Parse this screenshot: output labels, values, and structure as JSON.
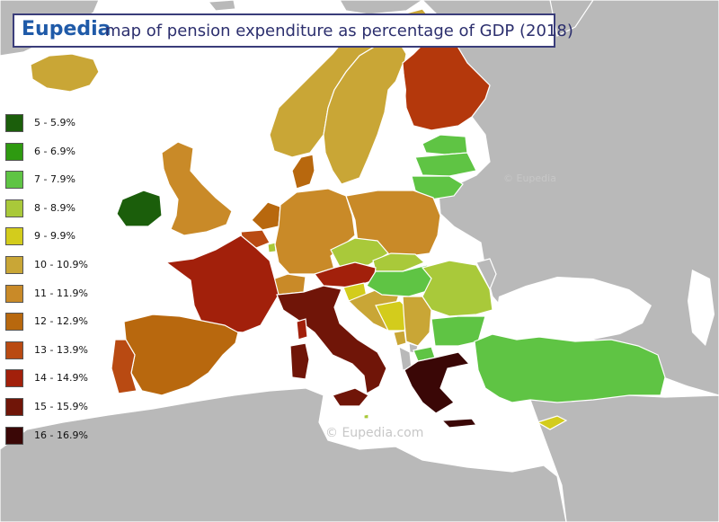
{
  "header": {
    "brand": "Eupedia",
    "title": "map of pension expenditure as percentage of GDP (2018)"
  },
  "legend": {
    "items": [
      {
        "label": "5 - 5.9%",
        "color": "#1b5e0b"
      },
      {
        "label": "6 - 6.9%",
        "color": "#2e9a10"
      },
      {
        "label": "7 - 7.9%",
        "color": "#5fc444"
      },
      {
        "label": "8 - 8.9%",
        "color": "#a9c93a"
      },
      {
        "label": "9 - 9.9%",
        "color": "#d3cc1c"
      },
      {
        "label": "10 - 10.9%",
        "color": "#c9a636"
      },
      {
        "label": "11 - 11.9%",
        "color": "#c98a28"
      },
      {
        "label": "12 - 12.9%",
        "color": "#b8680e"
      },
      {
        "label": "13 - 13.9%",
        "color": "#b94a12"
      },
      {
        "label": "14 - 14.9%",
        "color": "#a2200b"
      },
      {
        "label": "15 - 15.9%",
        "color": "#701508"
      },
      {
        "label": "16 - 16.9%",
        "color": "#3a0706"
      }
    ]
  },
  "watermarks": {
    "main": "© Eupedia.com",
    "secondary": "© Eupedia"
  },
  "colors": {
    "sea": "#ffffff",
    "no_data_land": "#b9b9b9",
    "border": "#ffffff",
    "title_border": "#3a3d7a"
  }
}
